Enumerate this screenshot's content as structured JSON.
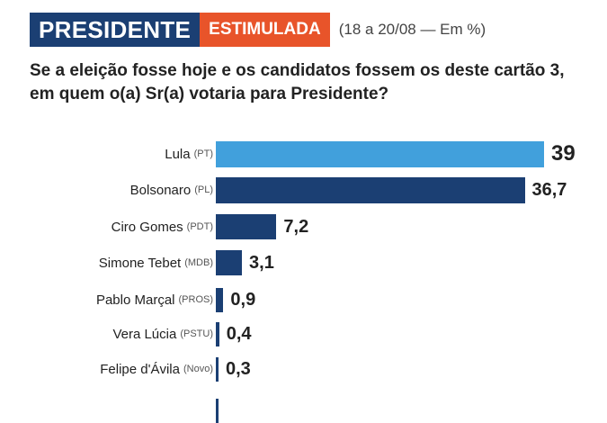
{
  "header": {
    "tag_primary": "PRESIDENTE",
    "tag_secondary": "ESTIMULADA",
    "date_range": "(18 a 20/08 — Em %)",
    "question": "Se a eleição fosse hoje e os candidatos fossem os deste cartão 3, em quem o(a) Sr(a) votaria para Presidente?"
  },
  "colors": {
    "primary": "#1b3f73",
    "secondary": "#e8542a",
    "highlight": "#41a0dc"
  },
  "chart_data": {
    "type": "bar",
    "orientation": "horizontal",
    "title": "PRESIDENTE ESTIMULADA (18 a 20/08 — Em %)",
    "subtitle": "Se a eleição fosse hoje e os candidatos fossem os deste cartão 3, em quem o(a) Sr(a) votaria para Presidente?",
    "xlabel": "",
    "ylabel": "",
    "categories": [
      "Lula (PT)",
      "Bolsonaro (PL)",
      "Ciro Gomes (PDT)",
      "Simone Tebet (MDB)",
      "Pablo Marçal (PROS)",
      "Vera Lúcia (PSTU)",
      "Felipe d'Ávila (Novo)"
    ],
    "values": [
      39,
      36.7,
      7.2,
      3.1,
      0.9,
      0.4,
      0.3
    ],
    "value_labels": [
      "39",
      "36,7",
      "7,2",
      "3,1",
      "0,9",
      "0,4",
      "0,3"
    ],
    "grid": false,
    "legend": "none"
  },
  "rows": [
    {
      "name": "Lula",
      "party": "(PT)",
      "value": 39,
      "label": "39",
      "color": "#41a0dc"
    },
    {
      "name": "Bolsonaro",
      "party": "(PL)",
      "value": 36.7,
      "label": "36,7",
      "color": "#1b3f73"
    },
    {
      "name": "Ciro Gomes",
      "party": "(PDT)",
      "value": 7.2,
      "label": "7,2",
      "color": "#1b3f73"
    },
    {
      "name": "Simone Tebet",
      "party": "(MDB)",
      "value": 3.1,
      "label": "3,1",
      "color": "#1b3f73"
    },
    {
      "name": "Pablo Marçal",
      "party": "(PROS)",
      "value": 0.9,
      "label": "0,9",
      "color": "#1b3f73"
    },
    {
      "name": "Vera Lúcia",
      "party": "(PSTU)",
      "value": 0.4,
      "label": "0,4",
      "color": "#1b3f73"
    },
    {
      "name": "Felipe d'Ávila",
      "party": "(Novo)",
      "value": 0.3,
      "label": "0,3",
      "color": "#1b3f73"
    }
  ]
}
